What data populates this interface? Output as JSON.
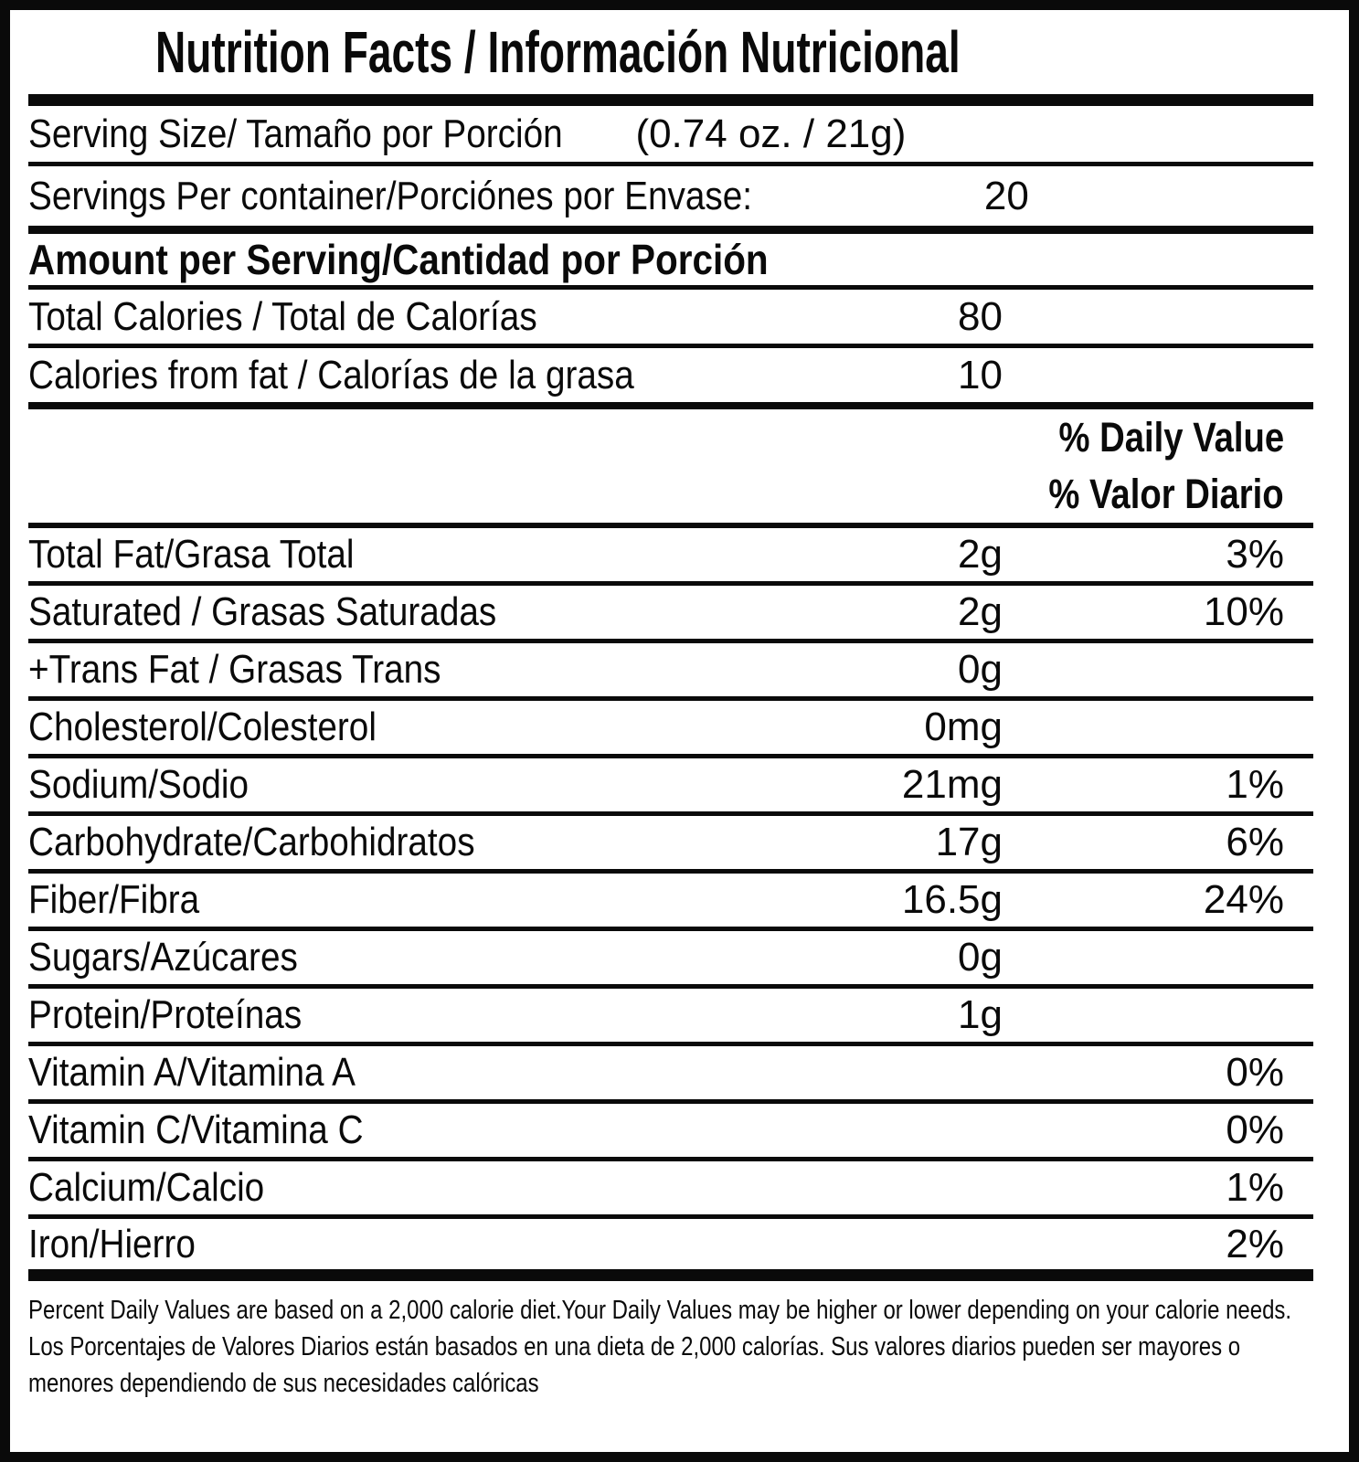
{
  "title": "Nutrition Facts / Información Nutricional",
  "serving": {
    "size_label": "Serving Size/ Tamaño por Porción",
    "size_value": "(0.74 oz. / 21g)",
    "per_container_label": "Servings Per container/Porciónes por Envase:",
    "per_container_value": "20"
  },
  "amount_per_serving_header": "Amount per Serving/Cantidad por Porción",
  "calories": [
    {
      "label": "Total Calories / Total de Calorías",
      "amount": "80"
    },
    {
      "label": "Calories from fat / Calorías de la grasa",
      "amount": "10"
    }
  ],
  "daily_value_header": {
    "en": "% Daily Value",
    "es": "% Valor Diario"
  },
  "nutrients": [
    {
      "label": "Total Fat/Grasa Total",
      "amount": "2g",
      "dv": "3%"
    },
    {
      "label": "Saturated / Grasas Saturadas",
      "amount": "2g",
      "dv": "10%"
    },
    {
      "label": "+Trans Fat / Grasas Trans",
      "amount": "0g",
      "dv": ""
    },
    {
      "label": "Cholesterol/Colesterol",
      "amount": "0mg",
      "dv": ""
    },
    {
      "label": "Sodium/Sodio",
      "amount": "21mg",
      "dv": "1%"
    },
    {
      "label": "Carbohydrate/Carbohidratos",
      "amount": "17g",
      "dv": "6%"
    },
    {
      "label": "Fiber/Fibra",
      "amount": "16.5g",
      "dv": "24%"
    },
    {
      "label": "Sugars/Azúcares",
      "amount": "0g",
      "dv": ""
    },
    {
      "label": "Protein/Proteínas",
      "amount": "1g",
      "dv": ""
    },
    {
      "label": "Vitamin A/Vitamina A",
      "amount": "",
      "dv": "0%"
    },
    {
      "label": "Vitamin C/Vitamina C",
      "amount": "",
      "dv": "0%"
    },
    {
      "label": "Calcium/Calcio",
      "amount": "",
      "dv": "1%"
    },
    {
      "label": "Iron/Hierro",
      "amount": "",
      "dv": "2%"
    }
  ],
  "footnote": {
    "en": "Percent Daily Values are based on a 2,000 calorie diet.Your Daily Values may be higher or lower depending on your calorie needs.",
    "es": "Los Porcentajes de Valores Diarios están basados en una dieta de 2,000 calorías. Sus valores diarios pueden ser mayores o menores dependiendo de sus necesidades calóricas"
  },
  "colors": {
    "ink": "#0a0a0a",
    "background": "#ffffff"
  }
}
